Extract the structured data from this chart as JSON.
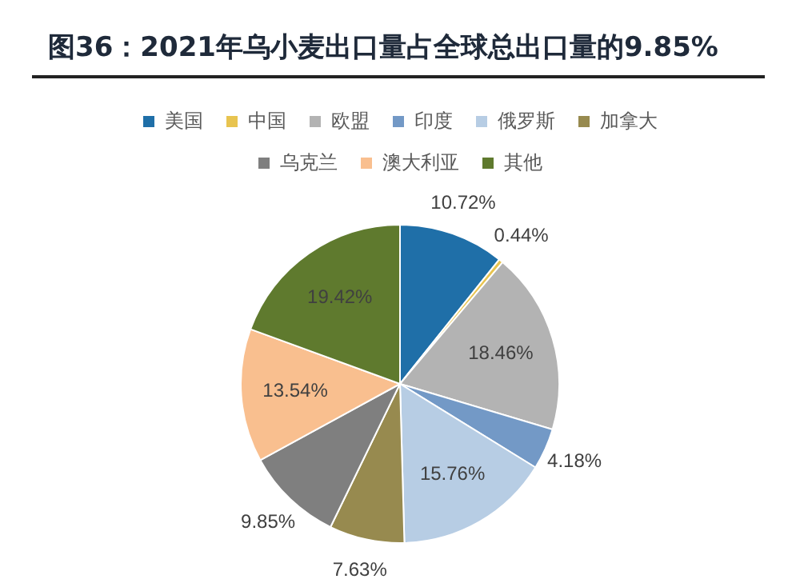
{
  "chart_data": {
    "type": "pie",
    "title": "图36：2021年乌小麦出口量占全球总出口量的9.85%",
    "categories": [
      "美国",
      "中国",
      "欧盟",
      "印度",
      "俄罗斯",
      "加拿大",
      "乌克兰",
      "澳大利亚",
      "其他"
    ],
    "values": [
      10.72,
      0.44,
      18.46,
      4.18,
      15.76,
      7.63,
      9.85,
      13.54,
      19.42
    ],
    "colors": [
      "#1f6fa8",
      "#e8c450",
      "#b3b3b3",
      "#7399c6",
      "#b7cde4",
      "#978a4f",
      "#7f7f7f",
      "#f9bf8f",
      "#5f7a2e"
    ],
    "value_labels": [
      "10.72%",
      "0.44%",
      "18.46%",
      "4.18%",
      "15.76%",
      "7.63%",
      "9.85%",
      "13.54%",
      "19.42%"
    ],
    "legend": "top"
  }
}
